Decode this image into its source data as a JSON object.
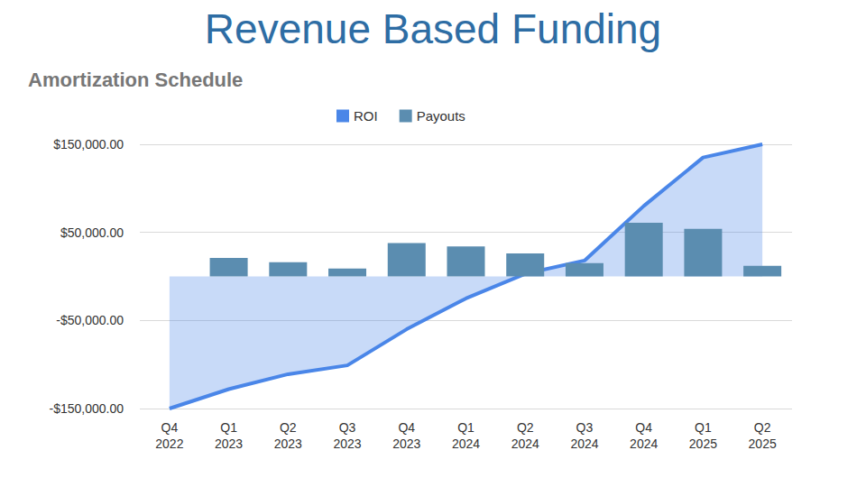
{
  "chart_data": {
    "type": "combo",
    "title": "Revenue Based Funding",
    "subtitle": "Amortization Schedule",
    "categories": [
      "Q4 2022",
      "Q1 2023",
      "Q2 2023",
      "Q3 2023",
      "Q4 2023",
      "Q1 2024",
      "Q2 2024",
      "Q3 2024",
      "Q4 2024",
      "Q1 2025",
      "Q2 2025"
    ],
    "series": [
      {
        "name": "ROI",
        "type": "line",
        "color": "#4a86e8",
        "values": [
          -150000,
          -128000,
          -111000,
          -101000,
          -60000,
          -25000,
          3000,
          18000,
          80000,
          135000,
          150000
        ]
      },
      {
        "name": "Payouts",
        "type": "bar",
        "color": "#5b8db0",
        "values": [
          null,
          21000,
          16000,
          9000,
          38000,
          34000,
          26000,
          15000,
          61000,
          54000,
          12000
        ]
      }
    ],
    "ylim": [
      -150000,
      150000
    ],
    "yticks": [
      {
        "value": -150000,
        "label": "-$150,000.00"
      },
      {
        "value": -50000,
        "label": "-$50,000.00"
      },
      {
        "value": 50000,
        "label": "$50,000.00"
      },
      {
        "value": 150000,
        "label": "$150,000.00"
      }
    ],
    "grid": true,
    "legend": "top"
  }
}
